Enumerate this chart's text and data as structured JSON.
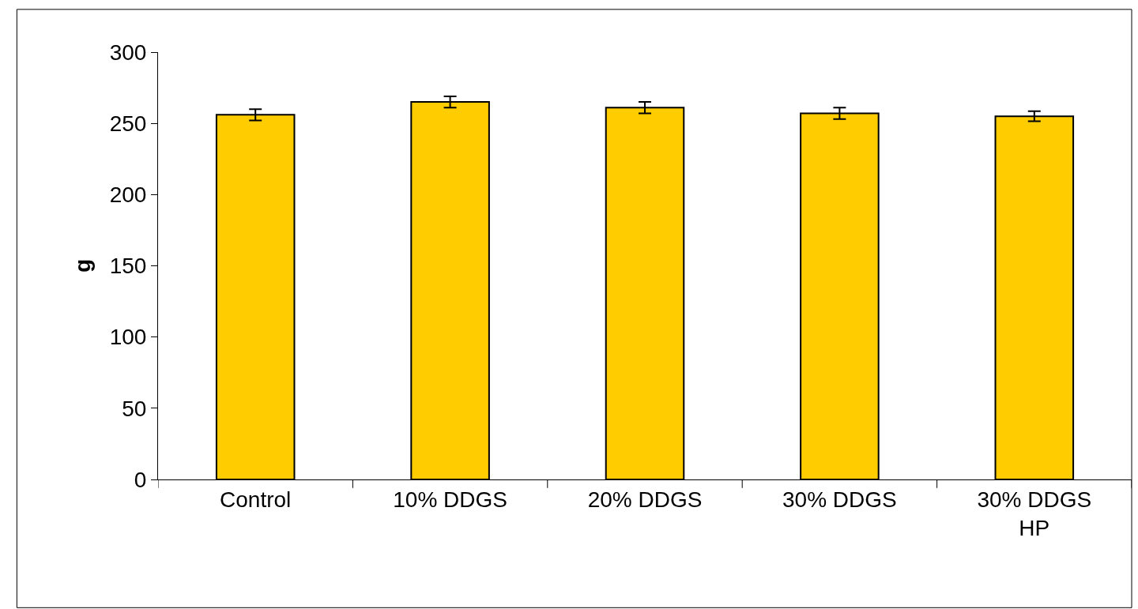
{
  "chart_data": {
    "type": "bar",
    "ylabel": "g",
    "categories": [
      "Control",
      "10% DDGS",
      "20% DDGS",
      "30% DDGS",
      "30% DDGS\nHP"
    ],
    "values": [
      256,
      265,
      261,
      257,
      255
    ],
    "errors": [
      4,
      4,
      4,
      4,
      3.5
    ],
    "color": "#ffcc00",
    "ylim": [
      0,
      300
    ],
    "yticks": [
      0,
      50,
      100,
      150,
      200,
      250,
      300
    ]
  }
}
